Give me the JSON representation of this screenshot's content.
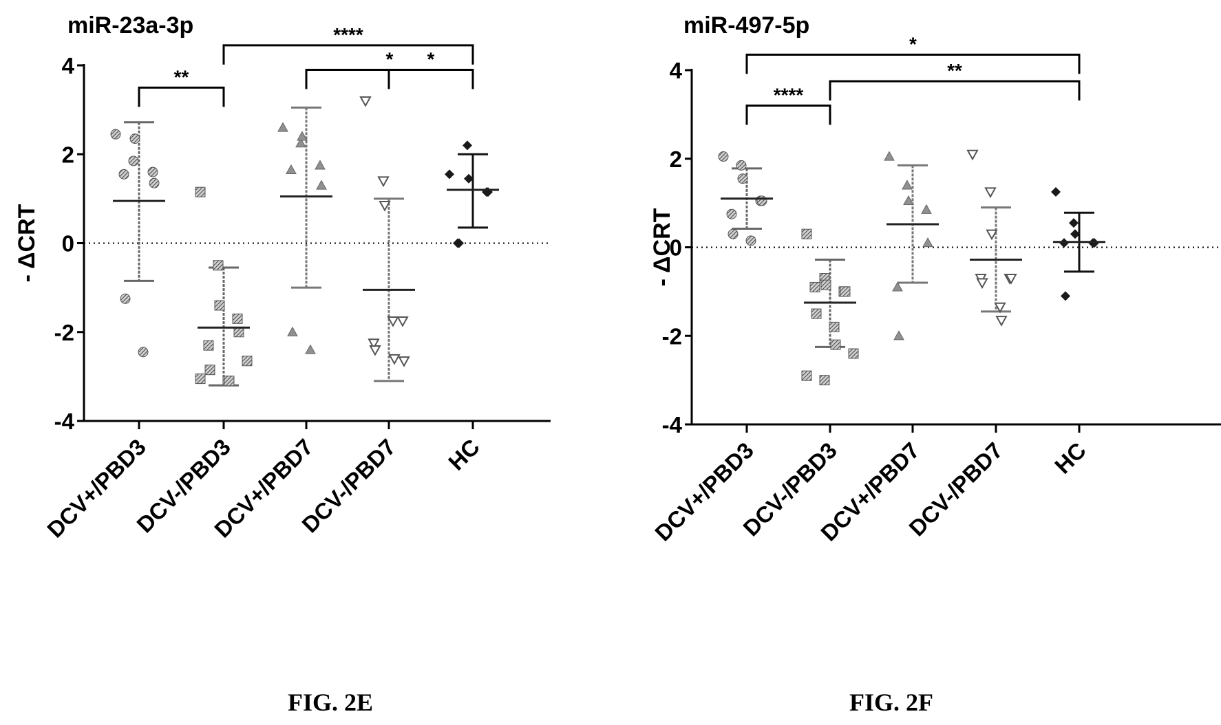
{
  "chart_data": [
    {
      "type": "scatter",
      "title": "miR-23a-3p",
      "figure_label": "FIG. 2E",
      "ylabel": "- ΔCRT",
      "ylim": [
        -4,
        4
      ],
      "yticks": [
        "-4",
        "-2",
        "0",
        "2",
        "4"
      ],
      "categories": [
        "DCV+/PBD3",
        "DCV-/PBD3",
        "DCV+/PBD7",
        "DCV-/PBD7",
        "HC"
      ],
      "series": [
        {
          "points": [
            2.45,
            1.85,
            2.35,
            1.6,
            1.35,
            1.55,
            -1.25,
            -2.45
          ],
          "mean": 0.95,
          "sd_low": -0.85,
          "sd_high": 2.72,
          "marker": "circle-hatched",
          "color": "#707070"
        },
        {
          "points": [
            1.15,
            -0.5,
            -1.4,
            -1.7,
            -2.0,
            -2.3,
            -2.85,
            -3.1,
            -3.1,
            -2.65,
            -3.05
          ],
          "mean": -1.9,
          "sd_low": -3.2,
          "sd_high": -0.55,
          "marker": "square-hatched",
          "color": "#707070"
        },
        {
          "points": [
            2.6,
            2.25,
            2.4,
            1.75,
            1.3,
            1.65,
            -2.0,
            -2.4
          ],
          "mean": 1.05,
          "sd_low": -1.0,
          "sd_high": 3.05,
          "marker": "triangle-up",
          "color": "#909090"
        },
        {
          "points": [
            3.2,
            1.4,
            0.85,
            -1.75,
            -2.65,
            -2.25,
            -2.4,
            -1.75,
            -2.6
          ],
          "mean": -1.05,
          "sd_low": -3.1,
          "sd_high": 1.0,
          "marker": "triangle-down",
          "color": "#909090"
        },
        {
          "points": [
            1.55,
            2.2,
            1.45,
            1.15,
            1.15,
            0.0,
            0.0
          ],
          "mean": 1.2,
          "sd_low": 0.35,
          "sd_high": 2.0,
          "marker": "diamond",
          "color": "#1a1a1a"
        }
      ],
      "significance": [
        {
          "from": 0,
          "to": 1,
          "label": "**",
          "y": 3.5
        },
        {
          "from": 1,
          "to": 4,
          "label": "****",
          "y": 4.45
        },
        {
          "from": 2,
          "to": 4,
          "label": "*",
          "y": 3.9
        },
        {
          "from": 3,
          "to": 4,
          "label": "*",
          "y": 3.9
        }
      ]
    },
    {
      "type": "scatter",
      "title": "miR-497-5p",
      "figure_label": "FIG. 2F",
      "ylabel": "- ΔCRT",
      "ylim": [
        -4,
        4
      ],
      "yticks": [
        "-4",
        "-2",
        "0",
        "2",
        "4"
      ],
      "categories": [
        "DCV+/PBD3",
        "DCV-/PBD3",
        "DCV+/PBD7",
        "DCV-/PBD7",
        "HC"
      ],
      "series": [
        {
          "points": [
            2.05,
            1.85,
            1.55,
            1.05,
            1.05,
            0.75,
            0.3,
            0.15
          ],
          "mean": 1.1,
          "sd_low": 0.42,
          "sd_high": 1.78,
          "marker": "circle-hatched",
          "color": "#707070"
        },
        {
          "points": [
            0.3,
            -0.7,
            -0.85,
            -1.0,
            -1.0,
            -0.9,
            -1.5,
            -1.8,
            -2.2,
            -2.4,
            -2.9,
            -3.0
          ],
          "mean": -1.25,
          "sd_low": -2.25,
          "sd_high": -0.28,
          "marker": "square-hatched",
          "color": "#707070"
        },
        {
          "points": [
            2.05,
            1.4,
            1.05,
            0.85,
            0.1,
            -0.9,
            -2.0
          ],
          "mean": 0.52,
          "sd_low": -0.8,
          "sd_high": 1.85,
          "marker": "triangle-up",
          "color": "#909090"
        },
        {
          "points": [
            2.1,
            1.25,
            0.3,
            -0.7,
            -0.7,
            -0.7,
            -0.8,
            -1.35,
            -1.65
          ],
          "mean": -0.28,
          "sd_low": -1.45,
          "sd_high": 0.9,
          "marker": "triangle-down",
          "color": "#909090"
        },
        {
          "points": [
            1.25,
            0.55,
            0.3,
            0.1,
            0.1,
            0.1,
            -1.1
          ],
          "mean": 0.12,
          "sd_low": -0.55,
          "sd_high": 0.78,
          "marker": "diamond",
          "color": "#1a1a1a"
        }
      ],
      "significance": [
        {
          "from": 0,
          "to": 4,
          "label": "*",
          "y": 4.35
        },
        {
          "from": 0,
          "to": 1,
          "label": "****",
          "y": 3.2
        },
        {
          "from": 1,
          "to": 4,
          "label": "**",
          "y": 3.75
        }
      ]
    }
  ]
}
